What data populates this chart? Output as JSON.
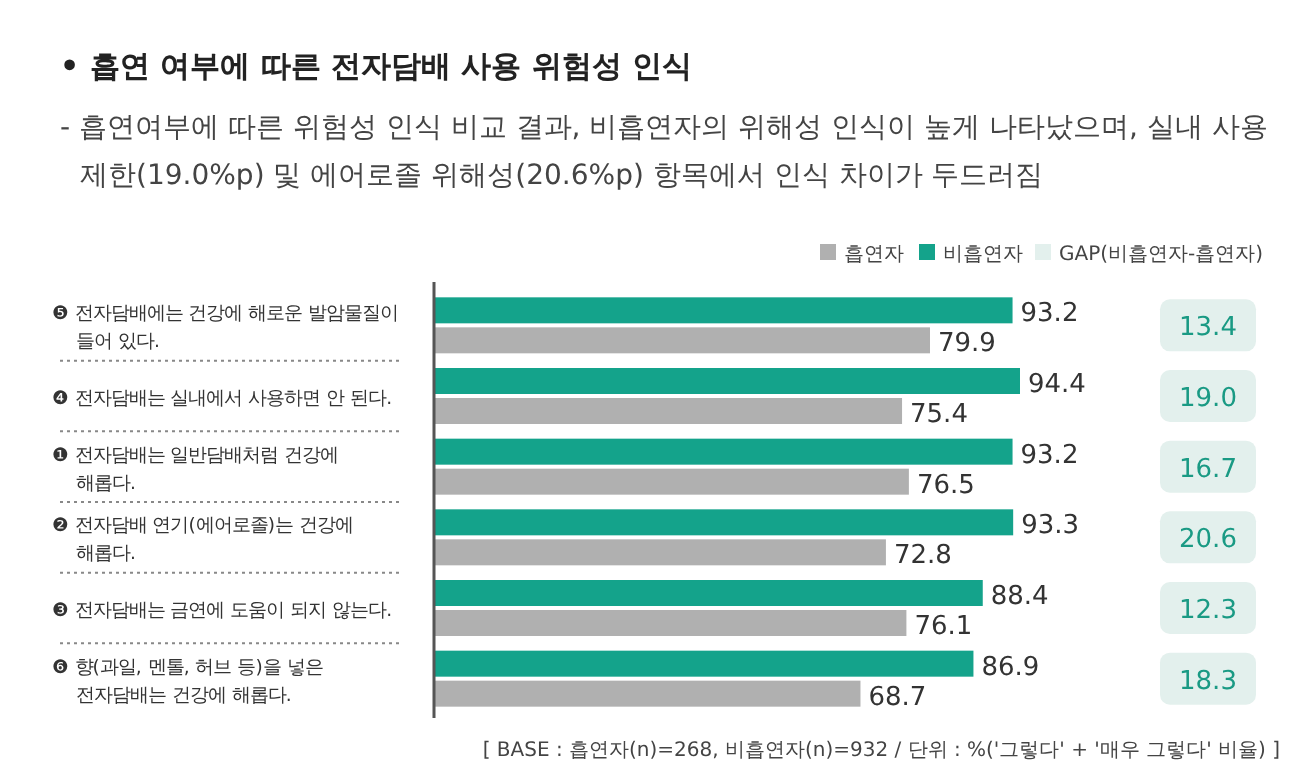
{
  "chart_data": [
    {
      "type": "bar",
      "orientation": "horizontal",
      "title": "• 흡연 여부에 따른 전자담배 사용 위험성 인식",
      "subtitle": "- 흡연여부에 따른 위험성 인식 비교 결과, 비흡연자의 위해성 인식이 높게 나타났으며, 실내 사용\n제한(19.0%p) 및 에어로졸 위해성(20.6%p) 항목에서 인식 차이가 두드러짐",
      "categories": [
        "❺ 전자담배에는 건강에 해로운 발암물질이\n들어 있다.",
        "❹ 전자담배는 실내에서 사용하면 안 된다.",
        "❶ 전자담배는 일반담배처럼 건강에\n해롭다.",
        "❷ 전자담배 연기(에어로졸)는 건강에\n해롭다.",
        "❸ 전자담배는 금연에 도움이 되지 않는다.",
        "❻ 향(과일, 멘톨, 허브 등)을 넣은\n전자담배는 건강에 해롭다."
      ],
      "series": [
        {
          "name": "흡연자",
          "color": "#b0b0b0",
          "values": [
            79.9,
            75.4,
            76.5,
            72.8,
            76.1,
            68.7
          ]
        },
        {
          "name": "비흡연자",
          "color": "#14a38b",
          "values": [
            93.2,
            94.4,
            93.2,
            93.3,
            88.4,
            86.9
          ]
        }
      ],
      "tick_labels": "y",
      "data_labels": true,
      "legend": "top right",
      "annotations": [
        "[ BASE : 흡연자(n)=268, 비흡연자(n)=932 / 단위 : %('그렇다' + '매우 그렇다' 비율) ]"
      ]
    },
    {
      "type": "other",
      "categories": [
        null,
        null,
        null,
        null,
        null,
        null
      ],
      "series": [
        {
          "name": "GAP(비흡연자-흡연자)",
          "color": "#e3f0ed",
          "values": [
            13.4,
            19.0,
            16.7,
            20.6,
            12.3,
            18.3
          ],
          "value_labels": [
            "13.4",
            "19.0",
            "16.7",
            "20.6",
            "12.3",
            "18.3"
          ]
        }
      ],
      "legend": "top right"
    }
  ]
}
